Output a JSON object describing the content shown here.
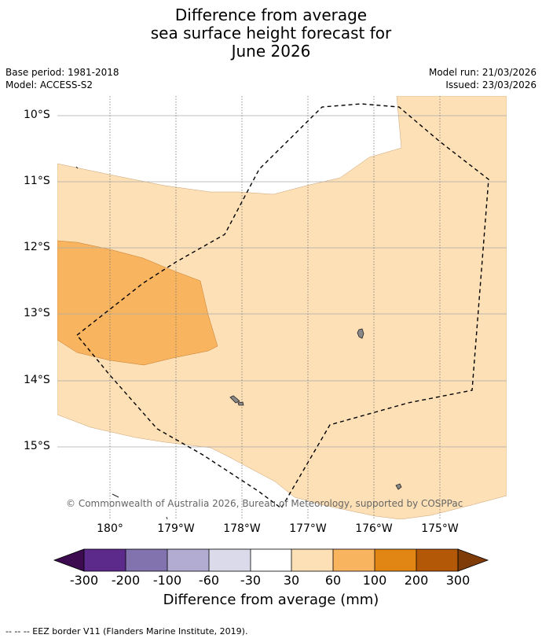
{
  "title": {
    "line1": "Difference from average",
    "line2": "sea surface height forecast for",
    "line3": "June 2026"
  },
  "meta": {
    "base_period": "Base period: 1981-2018",
    "model": "Model: ACCESS-S2",
    "model_run": "Model run: 21/03/2026",
    "issued": "Issued: 23/03/2026"
  },
  "map": {
    "lat_labels": [
      "10°S",
      "11°S",
      "12°S",
      "13°S",
      "14°S",
      "15°S"
    ],
    "lon_labels": [
      "180°",
      "179°W",
      "178°W",
      "177°W",
      "176°W",
      "175°W"
    ],
    "copyright": "© Commonwealth of Australia 2026, Bureau of Meteorology, supported by COSPPac"
  },
  "colorbar": {
    "labels": [
      "-300",
      "-200",
      "-100",
      "-60",
      "-30",
      "30",
      "60",
      "100",
      "200",
      "300"
    ],
    "colors": [
      "#3d0b4f",
      "#5c2a8a",
      "#8272ae",
      "#b3acd2",
      "#dadaeb",
      "#ffffff",
      "#fde0b6",
      "#f8b45f",
      "#e18514",
      "#b35806",
      "#7f3b08"
    ],
    "title": "Difference from average (mm)"
  },
  "legend": {
    "eez_border": "--  --  -- EEZ border V11 (Flanders Marine Institute, 2019)."
  }
}
